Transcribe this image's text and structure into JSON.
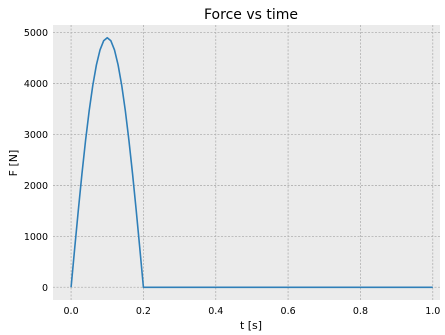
{
  "chart_data": {
    "type": "line",
    "title": "Force vs time",
    "xlabel": "t [s]",
    "ylabel": "F [N]",
    "xlim": [
      -0.05,
      1.02
    ],
    "ylim": [
      -250,
      5150
    ],
    "xticks": [
      "0.0",
      "0.2",
      "0.4",
      "0.6",
      "0.8",
      "1.0"
    ],
    "yticks": [
      "0",
      "1000",
      "2000",
      "3000",
      "4000",
      "5000"
    ],
    "grid": true,
    "colors": {
      "line": "#2f7fb8",
      "background": "#ebebeb",
      "grid": "#b0b0b0"
    },
    "series": [
      {
        "x": [
          0.0,
          0.01,
          0.02,
          0.03,
          0.04,
          0.05,
          0.06,
          0.07,
          0.08,
          0.09,
          0.1,
          0.11,
          0.12,
          0.13,
          0.14,
          0.15,
          0.16,
          0.17,
          0.18,
          0.19,
          0.2,
          0.3,
          0.4,
          0.5,
          0.6,
          0.7,
          0.8,
          0.9,
          1.0
        ],
        "y": [
          0,
          766,
          1514,
          2224,
          2880,
          3465,
          3964,
          4366,
          4660,
          4840,
          4900,
          4840,
          4660,
          4366,
          3964,
          3465,
          2880,
          2224,
          1514,
          766,
          0,
          0,
          0,
          0,
          0,
          0,
          0,
          0,
          0
        ]
      }
    ]
  }
}
